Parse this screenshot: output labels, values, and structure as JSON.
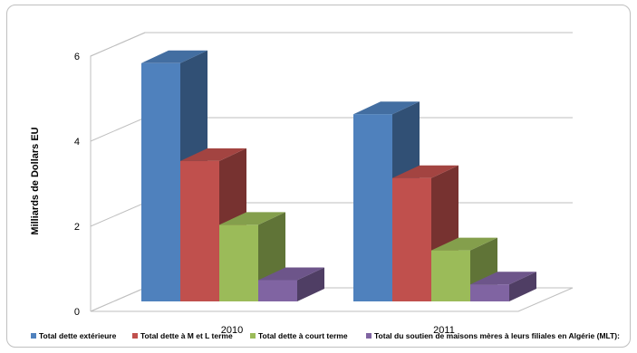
{
  "chart_data": {
    "type": "bar",
    "style": "3d-clustered-column",
    "title": "",
    "xlabel": "",
    "ylabel": "Milliards de Dollars EU",
    "ylim": [
      0,
      6
    ],
    "yticks": [
      0,
      2,
      4,
      6
    ],
    "grid": true,
    "legend_position": "bottom",
    "categories": [
      "2010",
      "2011"
    ],
    "series": [
      {
        "name": "Total dette extérieure",
        "values": [
          5.6,
          4.4
        ],
        "color": "#4f81bd"
      },
      {
        "name": "Total dette à M et L terme",
        "values": [
          3.3,
          2.9
        ],
        "color": "#c0504d"
      },
      {
        "name": "Total dette à court  terme",
        "values": [
          1.8,
          1.2
        ],
        "color": "#9bbb59"
      },
      {
        "name": "Total du soutien de maisons mères à leurs filiales en Algérie (MLT):",
        "values": [
          0.5,
          0.4
        ],
        "color": "#8064a2"
      }
    ]
  }
}
